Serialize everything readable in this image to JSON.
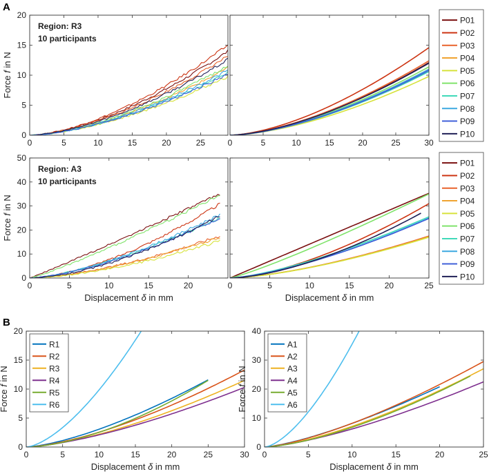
{
  "figure": {
    "panel_a_label": "A",
    "panel_b_label": "B",
    "ylabel": "Force",
    "ylabel_var": "f",
    "ylabel_unit": "in N",
    "xlabel": "Displacement",
    "xlabel_var": "δ",
    "xlabel_unit": "in mm"
  },
  "colors": {
    "P01": "#7a0f0f",
    "P02": "#cc3311",
    "P03": "#e8622a",
    "P04": "#f0a330",
    "P05": "#d6e23a",
    "P06": "#7fe36a",
    "P07": "#3fd9b8",
    "P08": "#3aa8e0",
    "P09": "#3f5fd8",
    "P10": "#1f1f55",
    "R1": "#0072bd",
    "R2": "#d95319",
    "R3": "#edb120",
    "R4": "#7e2f8e",
    "R5": "#77ac30",
    "R6": "#4dbeee"
  },
  "chart_data": [
    {
      "id": "A-R3-measured",
      "type": "line",
      "annotation": [
        "Region: R3",
        "10 participants"
      ],
      "xlim": [
        0,
        29
      ],
      "ylim": [
        0,
        20
      ],
      "xticks": [
        0,
        5,
        10,
        15,
        20,
        25
      ],
      "yticks": [
        0,
        5,
        10,
        15,
        20
      ],
      "exponent": 1.6,
      "noisy": true,
      "series": [
        {
          "name": "P01",
          "xmax": 29,
          "ymax": 14.0
        },
        {
          "name": "P02",
          "xmax": 29,
          "ymax": 15.0
        },
        {
          "name": "P03",
          "xmax": 29,
          "ymax": 13.2
        },
        {
          "name": "P04",
          "xmax": 29,
          "ymax": 11.2
        },
        {
          "name": "P05",
          "xmax": 29,
          "ymax": 9.8
        },
        {
          "name": "P06",
          "xmax": 29,
          "ymax": 11.6
        },
        {
          "name": "P07",
          "xmax": 29,
          "ymax": 10.4
        },
        {
          "name": "P08",
          "xmax": 29,
          "ymax": 10.8
        },
        {
          "name": "P09",
          "xmax": 29,
          "ymax": 10.2
        },
        {
          "name": "P10",
          "xmax": 29,
          "ymax": 12.6
        }
      ]
    },
    {
      "id": "A-R3-model",
      "type": "line",
      "xlim": [
        0,
        30
      ],
      "ylim": [
        0,
        20
      ],
      "xticks": [
        0,
        5,
        10,
        15,
        20,
        25,
        30
      ],
      "yticks": [
        0,
        5,
        10,
        15,
        20
      ],
      "exponent": 1.6,
      "noisy": false,
      "legend": [
        "P01",
        "P02",
        "P03",
        "P04",
        "P05",
        "P06",
        "P07",
        "P08",
        "P09",
        "P10"
      ],
      "series": [
        {
          "name": "P01",
          "xmax": 30,
          "ymax": 12.1
        },
        {
          "name": "P02",
          "xmax": 30,
          "ymax": 14.6
        },
        {
          "name": "P03",
          "xmax": 30,
          "ymax": 12.4
        },
        {
          "name": "P04",
          "xmax": 30,
          "ymax": 11.0
        },
        {
          "name": "P05",
          "xmax": 30,
          "ymax": 9.8
        },
        {
          "name": "P06",
          "xmax": 30,
          "ymax": 11.4
        },
        {
          "name": "P07",
          "xmax": 30,
          "ymax": 10.6
        },
        {
          "name": "P08",
          "xmax": 30,
          "ymax": 11.0
        },
        {
          "name": "P09",
          "xmax": 30,
          "ymax": 10.8
        },
        {
          "name": "P10",
          "xmax": 30,
          "ymax": 12.0
        }
      ]
    },
    {
      "id": "A-A3-measured",
      "type": "line",
      "annotation": [
        "Region: A3",
        "10 participants"
      ],
      "xlim": [
        0,
        25
      ],
      "ylim": [
        0,
        50
      ],
      "xticks": [
        0,
        5,
        10,
        15,
        20
      ],
      "yticks": [
        0,
        10,
        20,
        30,
        40,
        50
      ],
      "noisy": true,
      "series": [
        {
          "name": "P01",
          "xmax": 24,
          "ymax": 35.0,
          "exponent": 1.05
        },
        {
          "name": "P02",
          "xmax": 24,
          "ymax": 31.0,
          "exponent": 1.6
        },
        {
          "name": "P03",
          "xmax": 24,
          "ymax": 17.5,
          "exponent": 1.55
        },
        {
          "name": "P04",
          "xmax": 24,
          "ymax": 17.0,
          "exponent": 1.55
        },
        {
          "name": "P05",
          "xmax": 24,
          "ymax": 15.5,
          "exponent": 1.6
        },
        {
          "name": "P06",
          "xmax": 24,
          "ymax": 34.5,
          "exponent": 1.15
        },
        {
          "name": "P07",
          "xmax": 24,
          "ymax": 25.0,
          "exponent": 1.45
        },
        {
          "name": "P08",
          "xmax": 24,
          "ymax": 26.5,
          "exponent": 1.5
        },
        {
          "name": "P09",
          "xmax": 24,
          "ymax": 25.0,
          "exponent": 1.5
        },
        {
          "name": "P10",
          "xmax": 24,
          "ymax": 26.0,
          "exponent": 1.65
        }
      ]
    },
    {
      "id": "A-A3-model",
      "type": "line",
      "xlim": [
        0,
        25
      ],
      "ylim": [
        0,
        50
      ],
      "xticks": [
        0,
        5,
        10,
        15,
        20,
        25
      ],
      "yticks": [
        0,
        10,
        20,
        30,
        40,
        50
      ],
      "noisy": false,
      "legend": [
        "P01",
        "P02",
        "P03",
        "P04",
        "P05",
        "P06",
        "P07",
        "P08",
        "P09",
        "P10"
      ],
      "series": [
        {
          "name": "P01",
          "xmax": 25,
          "ymax": 35.3,
          "exponent": 1.0
        },
        {
          "name": "P02",
          "xmax": 25,
          "ymax": 31.0,
          "exponent": 1.55
        },
        {
          "name": "P03",
          "xmax": 25,
          "ymax": 17.5,
          "exponent": 1.5
        },
        {
          "name": "P04",
          "xmax": 25,
          "ymax": 17.2,
          "exponent": 1.5
        },
        {
          "name": "P05",
          "xmax": 25,
          "ymax": 17.0,
          "exponent": 1.5
        },
        {
          "name": "P06",
          "xmax": 25,
          "ymax": 35.0,
          "exponent": 1.15
        },
        {
          "name": "P07",
          "xmax": 25,
          "ymax": 25.5,
          "exponent": 1.4
        },
        {
          "name": "P08",
          "xmax": 25,
          "ymax": 25.0,
          "exponent": 1.45
        },
        {
          "name": "P09",
          "xmax": 25,
          "ymax": 24.8,
          "exponent": 1.45
        },
        {
          "name": "P10",
          "xmax": 24,
          "ymax": 27.0,
          "exponent": 1.6
        }
      ]
    },
    {
      "id": "B-R",
      "type": "line",
      "xlim": [
        0,
        30
      ],
      "ylim": [
        0,
        20
      ],
      "xticks": [
        0,
        5,
        10,
        15,
        20,
        25,
        30
      ],
      "yticks": [
        0,
        5,
        10,
        15,
        20
      ],
      "noisy": false,
      "legend": [
        "R1",
        "R2",
        "R3",
        "R4",
        "R5",
        "R6"
      ],
      "series": [
        {
          "name": "R1",
          "xmax": 25,
          "ymax": 11.6,
          "exponent": 1.45
        },
        {
          "name": "R2",
          "xmax": 30,
          "ymax": 13.3,
          "exponent": 1.5
        },
        {
          "name": "R3",
          "xmax": 30,
          "ymax": 11.5,
          "exponent": 1.5
        },
        {
          "name": "R4",
          "xmax": 30,
          "ymax": 10.3,
          "exponent": 1.45
        },
        {
          "name": "R5",
          "xmax": 25,
          "ymax": 11.5,
          "exponent": 1.65
        },
        {
          "name": "R6",
          "xmax": 15.8,
          "ymax": 20.0,
          "exponent": 1.55
        }
      ]
    },
    {
      "id": "B-A",
      "type": "line",
      "xlim": [
        0,
        25
      ],
      "ylim": [
        0,
        40
      ],
      "xticks": [
        0,
        5,
        10,
        15,
        20,
        25
      ],
      "yticks": [
        0,
        10,
        20,
        30,
        40
      ],
      "noisy": false,
      "legend": [
        "A1",
        "A2",
        "A3",
        "A4",
        "A5",
        "A6"
      ],
      "series": [
        {
          "name": "A1",
          "xmax": 20,
          "ymax": 20.8,
          "exponent": 1.35,
          "color": "#0072bd"
        },
        {
          "name": "A2",
          "xmax": 25,
          "ymax": 29.5,
          "exponent": 1.4,
          "color": "#d95319"
        },
        {
          "name": "A3",
          "xmax": 25,
          "ymax": 27.0,
          "exponent": 1.45,
          "color": "#edb120"
        },
        {
          "name": "A4",
          "xmax": 25,
          "ymax": 22.5,
          "exponent": 1.4,
          "color": "#7e2f8e"
        },
        {
          "name": "A5",
          "xmax": 23.5,
          "ymax": 24.5,
          "exponent": 1.5,
          "color": "#77ac30"
        },
        {
          "name": "A6",
          "xmax": 10.8,
          "ymax": 40.0,
          "exponent": 1.55,
          "color": "#4dbeee"
        }
      ]
    }
  ]
}
